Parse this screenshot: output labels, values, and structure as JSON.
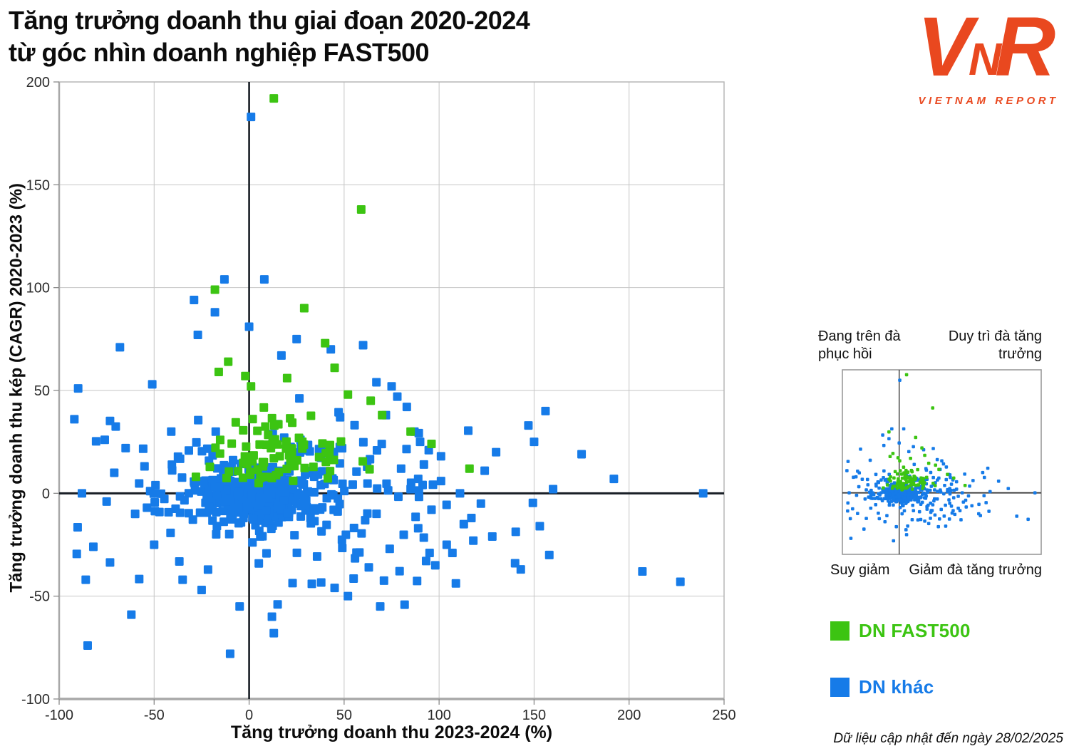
{
  "title": {
    "line1": "Tăng trưởng doanh thu giai đoạn 2020-2024",
    "line2": "từ góc nhìn doanh nghiệp FAST500"
  },
  "logo": {
    "letters": [
      "V",
      "N",
      "R"
    ],
    "subtitle": "VIETNAM REPORT",
    "color": "#E9481F"
  },
  "footnote": "Dữ liệu cập nhật đến ngày 28/02/2025",
  "legend": {
    "items": [
      {
        "label": "DN FAST500",
        "color": "#3CC412"
      },
      {
        "label": "DN khác",
        "color": "#167BE8"
      }
    ]
  },
  "inset": {
    "quadrants": {
      "top_left": "Đang trên đà phục hồi",
      "top_right": "Duy trì đà tăng trưởng",
      "bottom_left": "Suy giảm",
      "bottom_right": "Giảm đà tăng trưởng"
    }
  },
  "chart_data": {
    "type": "scatter",
    "title": "Tăng trưởng doanh thu giai đoạn 2020-2024 từ góc nhìn doanh nghiệp FAST500",
    "xlabel": "Tăng trưởng doanh thu 2023-2024 (%)",
    "ylabel": "Tăng trưởng doanh thu kép (CAGR) 2020-2023 (%)",
    "xlim": [
      -100,
      250
    ],
    "ylim": [
      -100,
      200
    ],
    "xticks": [
      -100,
      -50,
      0,
      50,
      100,
      150,
      200,
      250
    ],
    "yticks": [
      -100,
      -50,
      0,
      50,
      100,
      150,
      200
    ],
    "grid": true,
    "legend_position": "right",
    "marker": "square",
    "seed": 7,
    "series": [
      {
        "name": "DN khác",
        "color": "#167BE8",
        "points": [
          [
            1,
            183
          ],
          [
            8,
            104
          ],
          [
            -13,
            104
          ],
          [
            -29,
            94
          ],
          [
            -18,
            88
          ],
          [
            0,
            81
          ],
          [
            25,
            75
          ],
          [
            -27,
            77
          ],
          [
            17,
            67
          ],
          [
            -68,
            71
          ],
          [
            67,
            54
          ],
          [
            43,
            70
          ],
          [
            60,
            72
          ],
          [
            75,
            52
          ],
          [
            -51,
            53
          ],
          [
            -41,
            30
          ],
          [
            -92,
            36
          ],
          [
            -90,
            51
          ],
          [
            -76,
            26
          ],
          [
            -71,
            10
          ],
          [
            -88,
            0
          ],
          [
            -75,
            -4
          ],
          [
            -82,
            -26
          ],
          [
            -86,
            -42
          ],
          [
            -85,
            -74
          ],
          [
            -62,
            -59
          ],
          [
            -10,
            -78
          ],
          [
            13,
            -68
          ],
          [
            15,
            -54
          ],
          [
            -35,
            -42
          ],
          [
            -25,
            -47
          ],
          [
            -50,
            -25
          ],
          [
            -60,
            -10
          ],
          [
            -65,
            22
          ],
          [
            69,
            -55
          ],
          [
            74,
            -27
          ],
          [
            89,
            -17
          ],
          [
            95,
            -29
          ],
          [
            104,
            -25
          ],
          [
            107,
            -29
          ],
          [
            113,
            -15
          ],
          [
            118,
            -23
          ],
          [
            128,
            -21
          ],
          [
            140,
            -34
          ],
          [
            153,
            -16
          ],
          [
            158,
            -30
          ],
          [
            207,
            -38
          ],
          [
            227,
            -43
          ],
          [
            239,
            0
          ],
          [
            192,
            7
          ],
          [
            175,
            19
          ],
          [
            156,
            40
          ],
          [
            147,
            33
          ],
          [
            160,
            2
          ],
          [
            130,
            20
          ],
          [
            124,
            11
          ],
          [
            111,
            0
          ],
          [
            101,
            18
          ],
          [
            89,
            7
          ],
          [
            90,
            25
          ],
          [
            96,
            -8
          ],
          [
            87,
            30
          ],
          [
            45,
            -46
          ],
          [
            63,
            -36
          ],
          [
            52,
            -50
          ],
          [
            33,
            -44
          ],
          [
            12,
            -60
          ],
          [
            -5,
            -55
          ],
          [
            83,
            42
          ],
          [
            78,
            47
          ],
          [
            72,
            38
          ],
          [
            80,
            12
          ],
          [
            85,
            2
          ],
          [
            92,
            14
          ],
          [
            150,
            25
          ],
          [
            143,
            -37
          ],
          [
            117,
            -12
          ],
          [
            98,
            -35
          ],
          [
            122,
            -5
          ]
        ],
        "clusters": [
          {
            "cx": 5,
            "cy": -2,
            "sx": 13,
            "sy": 6,
            "n": 300,
            "bounds": [
              -45,
              -22,
              70,
              13
            ]
          },
          {
            "cx": 12,
            "cy": 5,
            "sx": 32,
            "sy": 15,
            "n": 150,
            "bounds": [
              -75,
              -35,
              108,
              48
            ]
          },
          {
            "cx": 18,
            "cy": -4,
            "sx": 55,
            "sy": 24,
            "n": 75,
            "bounds": [
              -95,
              -62,
              165,
              55
            ]
          }
        ]
      },
      {
        "name": "DN FAST500",
        "color": "#3CC412",
        "points": [
          [
            13,
            192
          ],
          [
            59,
            138
          ],
          [
            -18,
            99
          ],
          [
            29,
            90
          ],
          [
            40,
            73
          ],
          [
            45,
            61
          ],
          [
            -11,
            64
          ],
          [
            -16,
            59
          ],
          [
            -2,
            57
          ],
          [
            20,
            56
          ],
          [
            1,
            52
          ],
          [
            96,
            24
          ],
          [
            116,
            12
          ],
          [
            85,
            30
          ],
          [
            64,
            45
          ],
          [
            52,
            48
          ],
          [
            -28,
            8
          ],
          [
            70,
            38
          ]
        ],
        "clusters": [
          {
            "cx": 14,
            "cy": 19,
            "sx": 16,
            "sy": 8,
            "n": 82,
            "bounds": [
              -30,
              4,
              88,
              52
            ]
          }
        ]
      }
    ]
  }
}
